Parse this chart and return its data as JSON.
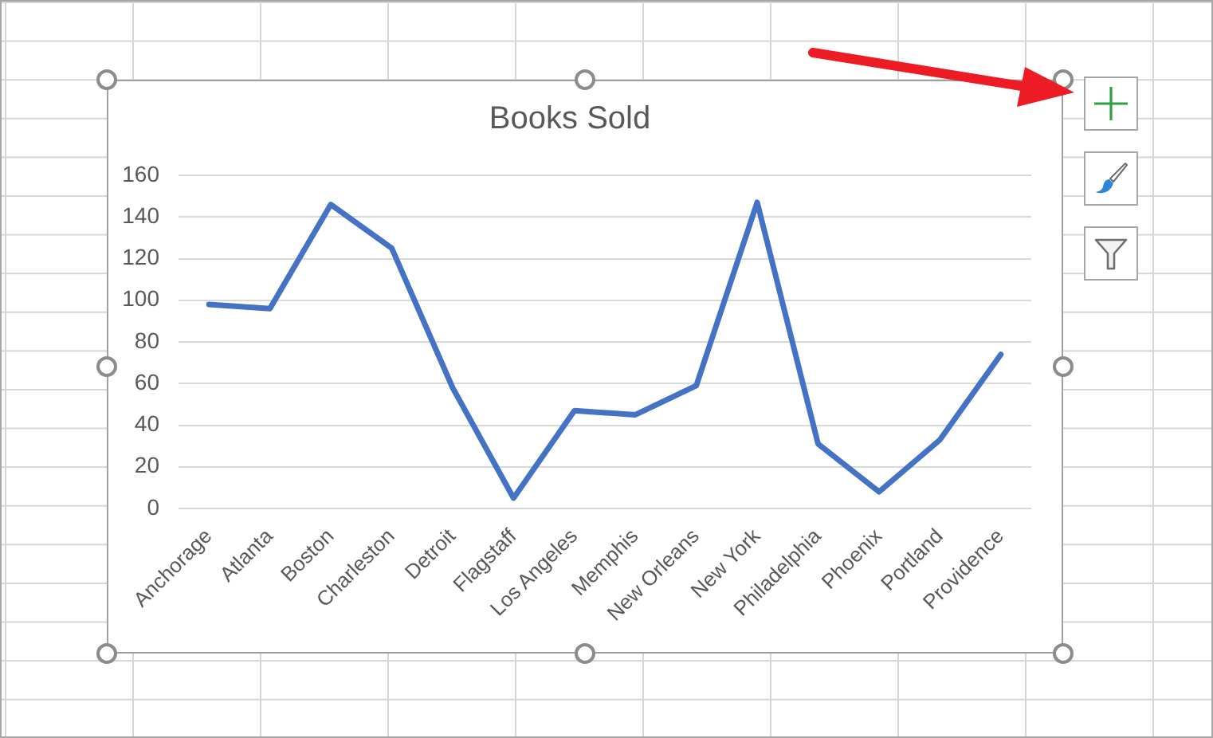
{
  "chart_data": {
    "type": "line",
    "title": "Books Sold",
    "categories": [
      "Anchorage",
      "Atlanta",
      "Boston",
      "Charleston",
      "Detroit",
      "Flagstaff",
      "Los Angeles",
      "Memphis",
      "New Orleans",
      "New York",
      "Philadelphia",
      "Phoenix",
      "Portland",
      "Providence"
    ],
    "series": [
      {
        "color": "#4472c4",
        "values": [
          98,
          96,
          146,
          125,
          58,
          5,
          47,
          45,
          59,
          147,
          31,
          8,
          33,
          74
        ]
      }
    ],
    "ylim": [
      0,
      160
    ],
    "yticks": [
      0,
      20,
      40,
      60,
      80,
      100,
      120,
      140,
      160
    ],
    "grid": "y"
  }
}
